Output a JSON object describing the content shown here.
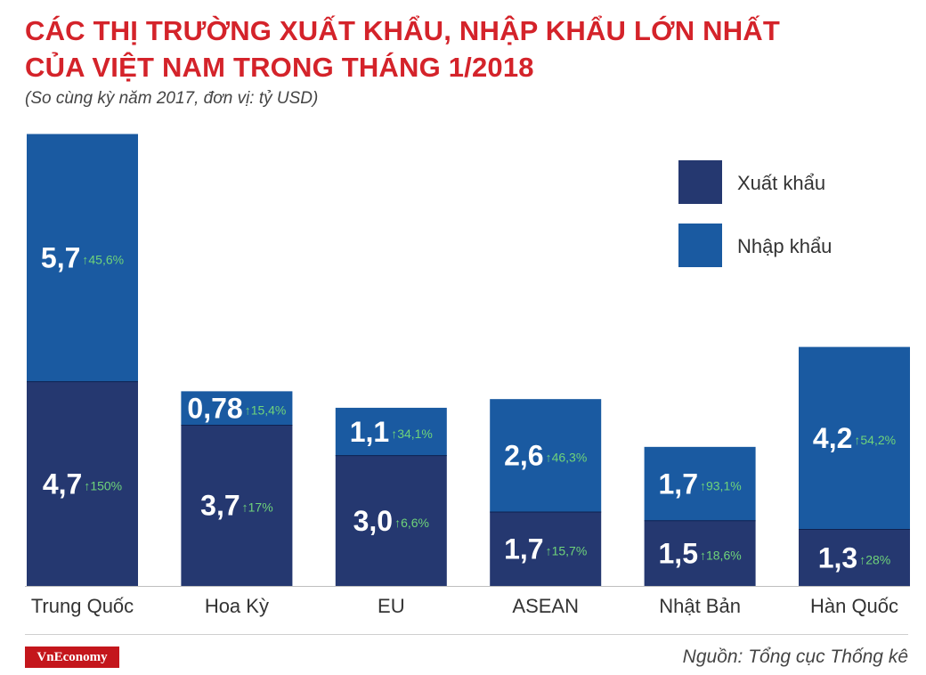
{
  "title": {
    "line1": "CÁC THỊ TRƯỜNG XUẤT KHẨU, NHẬP KHẨU LỚN NHẤT",
    "line2": "CỦA VIỆT NAM TRONG THÁNG 1/2018"
  },
  "subtitle": "(So cùng kỳ năm 2017, đơn vị: tỷ USD)",
  "footer": {
    "logo": "VnEconomy",
    "source": "Nguồn: Tổng cục Thống kê"
  },
  "colors": {
    "export": "#253870",
    "import": "#1a5aa1",
    "value_text": "#ffffff",
    "growth": "#6fd37a",
    "title": "#d4232a"
  },
  "chart_data": {
    "type": "bar",
    "stacked": true,
    "categories": [
      "Trung Quốc",
      "Hoa Kỳ",
      "EU",
      "ASEAN",
      "Nhật Bản",
      "Hàn Quốc"
    ],
    "series": [
      {
        "name": "Xuất khẩu",
        "values": [
          4.7,
          3.7,
          3.0,
          1.7,
          1.5,
          1.3
        ],
        "labels": [
          "4,7",
          "3,7",
          "3,0",
          "1,7",
          "1,5",
          "1,3"
        ],
        "growth": [
          "150%",
          "17%",
          "6,6%",
          "15,7%",
          "18,6%",
          "28%"
        ]
      },
      {
        "name": "Nhập khẩu",
        "values": [
          5.7,
          0.78,
          1.1,
          2.6,
          1.7,
          4.2
        ],
        "labels": [
          "5,7",
          "0,78",
          "1,1",
          "2,6",
          "1,7",
          "4,2"
        ],
        "growth": [
          "45,6%",
          "15,4%",
          "34,1%",
          "46,3%",
          "93,1%",
          "54,2%"
        ]
      }
    ],
    "legend": [
      "Xuất khẩu",
      "Nhập khẩu"
    ],
    "legend_position": "top-right",
    "ylim": [
      0,
      10.4
    ],
    "grid": false
  }
}
